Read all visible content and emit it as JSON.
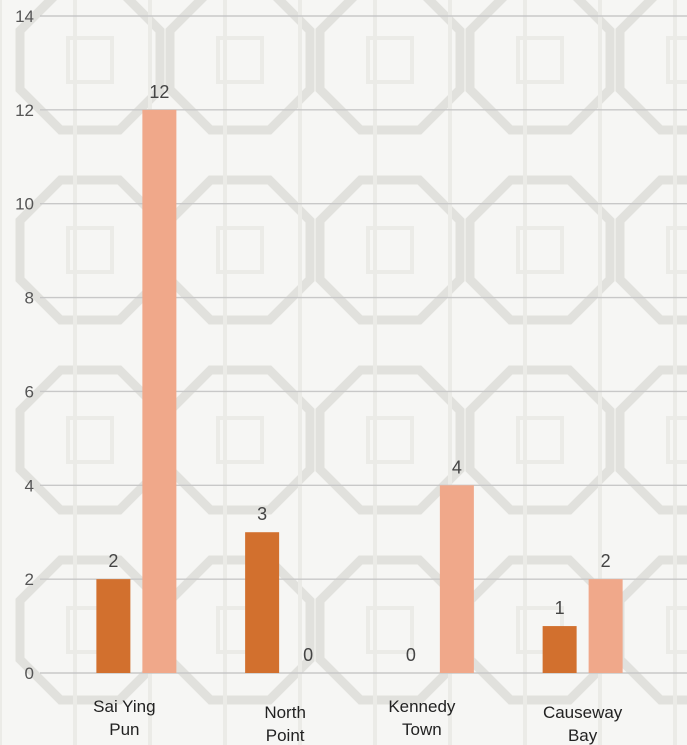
{
  "chart_data": {
    "type": "bar",
    "categories": [
      [
        "Sai Ying",
        "Pun"
      ],
      [
        "North",
        "Point"
      ],
      [
        "Kennedy",
        "Town"
      ],
      [
        "Causeway",
        "Bay"
      ]
    ],
    "series": [
      {
        "values": [
          2,
          3,
          0,
          1
        ],
        "color": "#d2702e"
      },
      {
        "values": [
          12,
          0,
          4,
          2
        ],
        "color": "#f0a88a"
      }
    ],
    "ylim": [
      0,
      14
    ],
    "yticks": [
      0,
      2,
      4,
      6,
      8,
      10,
      12,
      14
    ],
    "grid": true,
    "legend": "none",
    "title": "",
    "xlabel": "",
    "ylabel": ""
  }
}
